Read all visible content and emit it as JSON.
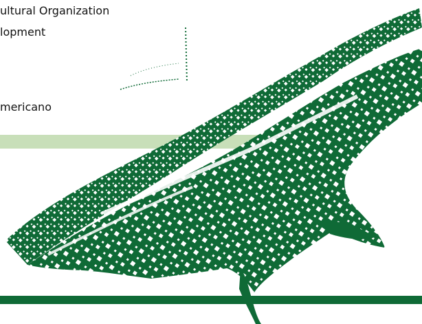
{
  "slide": {
    "line_1": "ultural Organization",
    "line_2": "lopment",
    "line_3": "mericano"
  },
  "colors": {
    "forest_green": "#0f6a36",
    "light_green": "#c8dfb9",
    "text": "#111111"
  },
  "graphic": {
    "icon": "scribbled-map-decoration"
  }
}
